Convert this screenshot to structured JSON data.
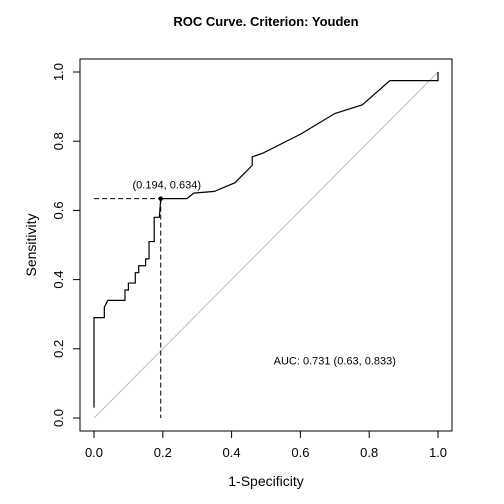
{
  "chart_data": {
    "type": "line",
    "title": "ROC Curve. Criterion: Youden",
    "xlabel": "1-Specificity",
    "ylabel": "Sensitivity",
    "xlim": [
      0,
      1
    ],
    "ylim": [
      0,
      1
    ],
    "x_ticks": [
      0.0,
      0.2,
      0.4,
      0.6,
      0.8,
      1.0
    ],
    "y_ticks": [
      0.0,
      0.2,
      0.4,
      0.6,
      0.8,
      1.0
    ],
    "x_tick_labels": [
      "0.0",
      "0.2",
      "0.4",
      "0.6",
      "0.8",
      "1.0"
    ],
    "y_tick_labels": [
      "0.0",
      "0.2",
      "0.4",
      "0.6",
      "0.8",
      "1.0"
    ],
    "grid": false,
    "series": [
      {
        "values": [
          [
            0.0,
            0.03
          ],
          [
            0.0,
            0.29
          ],
          [
            0.03,
            0.29
          ],
          [
            0.03,
            0.32
          ],
          [
            0.04,
            0.34
          ],
          [
            0.09,
            0.34
          ],
          [
            0.09,
            0.37
          ],
          [
            0.1,
            0.37
          ],
          [
            0.1,
            0.39
          ],
          [
            0.12,
            0.39
          ],
          [
            0.12,
            0.42
          ],
          [
            0.13,
            0.42
          ],
          [
            0.13,
            0.44
          ],
          [
            0.15,
            0.44
          ],
          [
            0.15,
            0.46
          ],
          [
            0.16,
            0.46
          ],
          [
            0.16,
            0.51
          ],
          [
            0.175,
            0.51
          ],
          [
            0.175,
            0.58
          ],
          [
            0.19,
            0.58
          ],
          [
            0.194,
            0.634
          ],
          [
            0.27,
            0.634
          ],
          [
            0.29,
            0.65
          ],
          [
            0.35,
            0.655
          ],
          [
            0.41,
            0.68
          ],
          [
            0.46,
            0.73
          ],
          [
            0.46,
            0.755
          ],
          [
            0.49,
            0.765
          ],
          [
            0.6,
            0.82
          ],
          [
            0.7,
            0.88
          ],
          [
            0.78,
            0.905
          ],
          [
            0.86,
            0.975
          ],
          [
            0.96,
            0.975
          ],
          [
            1.0,
            0.975
          ],
          [
            1.0,
            1.0
          ]
        ]
      }
    ],
    "reference_line": {
      "from": [
        0,
        0
      ],
      "to": [
        1,
        1
      ]
    },
    "optimal_point": {
      "x": 0.194,
      "y": 0.634,
      "label": "(0.194, 0.634)"
    },
    "annotation": "AUC: 0.731 (0.63, 0.833)",
    "colors": {
      "curve": "#000000",
      "diagonal": "#bebebe",
      "frame": "#000000"
    }
  }
}
